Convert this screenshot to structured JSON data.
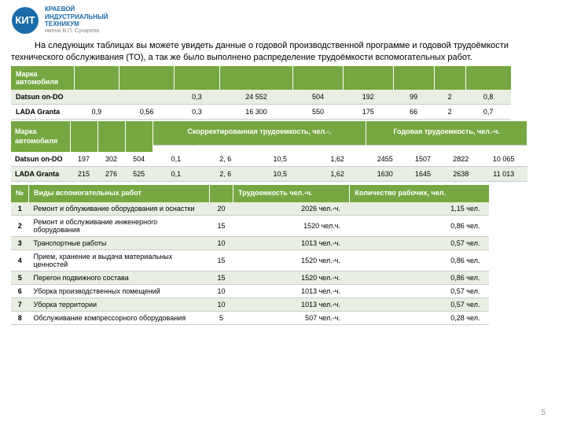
{
  "logo": {
    "abbr": "КИТ",
    "line1": "КРАЕВОЙ",
    "line2": "ИНДУСТРИАЛЬНЫЙ",
    "line3": "ТЕХНИКУМ",
    "sub": "имени В.П. Сухарева"
  },
  "intro": "На следующих таблицах вы можете увидеть данные о годовой производственной программе и годовой трудоёмкости технического обслуживания (ТО), а так же было выполнено распределение трудоёмкости вспомогательных работ.",
  "table1": {
    "header": [
      "Марка автомобиля",
      "",
      "",
      "",
      "",
      "",
      "",
      "",
      "",
      ""
    ],
    "rows": [
      [
        "Datsun on-DO",
        "",
        "",
        "0,3",
        "24 552",
        "504",
        "192",
        "99",
        "2",
        "0,8"
      ],
      [
        "LADA Granta",
        "0,9",
        "0,56",
        "0,3",
        "16 300",
        "550",
        "175",
        "66",
        "2",
        "0,7"
      ]
    ]
  },
  "table2": {
    "header1": [
      "Марка автомобиля",
      "",
      "",
      "",
      "Скорректированная трудоемкость, чел.-.",
      "",
      "",
      "",
      "Годовая трудоемкость, чел.-ч.",
      "",
      "",
      ""
    ],
    "rows": [
      [
        "Datsun on-DO",
        "197",
        "302",
        "504",
        "0,1",
        "2, 6",
        "10,5",
        "1,62",
        "2455",
        "1507",
        "2822",
        "10 065"
      ],
      [
        "LADA Granta",
        "215",
        "276",
        "525",
        "0,1",
        "2, 6",
        "10,5",
        "1,62",
        "1630",
        "1645",
        "2638",
        "11 013"
      ]
    ]
  },
  "table3": {
    "header": [
      "№",
      "Виды вспомогательных работ",
      "",
      "Трудоемкость чел.-ч.",
      "Количество рабочих, чел."
    ],
    "rows": [
      [
        "1",
        "Ремонт и облуживание оборудования и оснастки",
        "20",
        "2026 чел.-ч.",
        "1,15 чел."
      ],
      [
        "2",
        "Ремонт и обслуживание инженерного оборудования",
        "15",
        "1520 чел.ч.",
        "0,86 чел."
      ],
      [
        "3",
        "Транспортные работы",
        "10",
        "1013 чел.-ч.",
        "0,57 чел."
      ],
      [
        "4",
        "Прием, хранение и выдача материальных ценностей",
        "15",
        "1520 чел.-ч.",
        "0,86 чел."
      ],
      [
        "5",
        "Перегон подвижного состава",
        "15",
        "1520 чел.-ч.",
        "0,86 чел."
      ],
      [
        "6",
        "Уборка производственных помещений",
        "10",
        "1013 чел.-ч.",
        "0,57 чел."
      ],
      [
        "7",
        "Уборка территории",
        "10",
        "1013 чел.-ч.",
        "0,57 чел."
      ],
      [
        "8",
        "Обслуживание компрессорного оборудования",
        "5",
        "507 чел.-ч.",
        "0,28 чел."
      ]
    ]
  },
  "pageNum": "5"
}
